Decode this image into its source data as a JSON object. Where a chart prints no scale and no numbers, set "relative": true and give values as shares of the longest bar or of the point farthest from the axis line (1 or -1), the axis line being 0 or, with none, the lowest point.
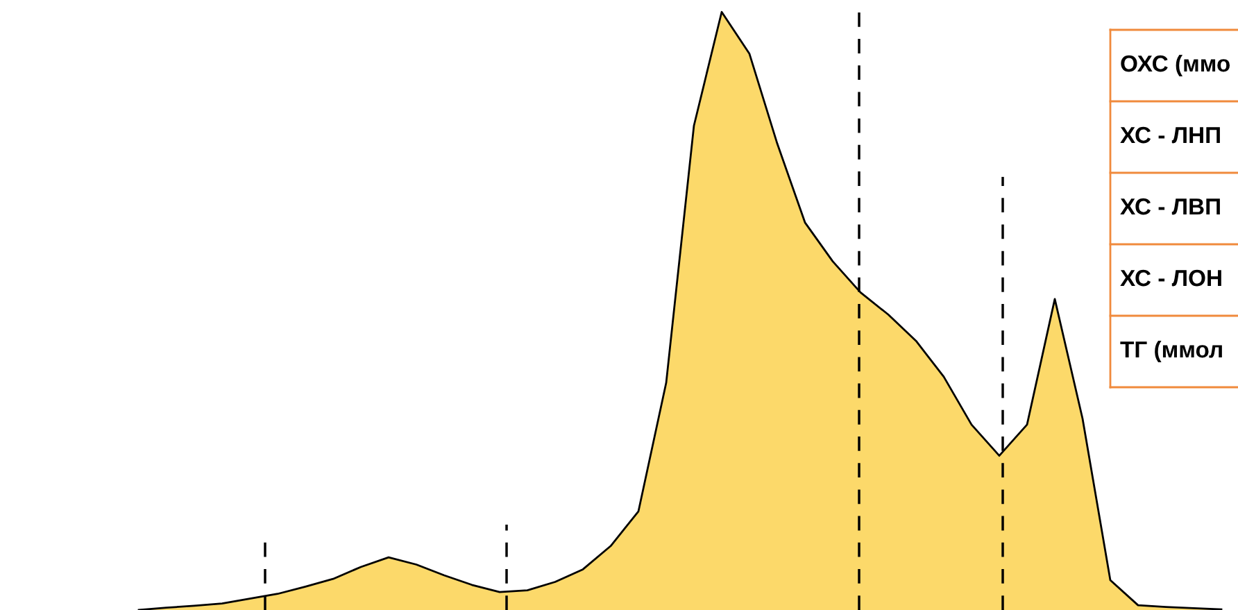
{
  "chart_data": {
    "type": "area",
    "relative": true,
    "categories": [
      null,
      null,
      null,
      null,
      null,
      null,
      null,
      null,
      null,
      null,
      null,
      null,
      null,
      null,
      null,
      null,
      null,
      null,
      null,
      null,
      null,
      null,
      null,
      null,
      null,
      null,
      null,
      null,
      null,
      null,
      null,
      null,
      null,
      null,
      null,
      null,
      null,
      null,
      null,
      null
    ],
    "series": [
      {
        "color": "#fcd96a",
        "values": [
          0,
          0.004,
          0.007,
          0.011,
          0.019,
          0.027,
          0.039,
          0.052,
          0.072,
          0.088,
          0.076,
          0.058,
          0.042,
          0.03,
          0.033,
          0.047,
          0.068,
          0.107,
          0.165,
          0.38,
          0.81,
          1.0,
          0.93,
          0.78,
          0.648,
          0.583,
          0.531,
          0.494,
          0.45,
          0.39,
          0.31,
          0.258,
          0.31,
          0.52,
          0.32,
          0.05,
          0.008,
          0.005,
          0.003,
          0.001
        ]
      }
    ],
    "annotations": [
      "ОХС (ммо",
      "ХС - ЛНП",
      "ХС - ЛВП",
      "ХС - ЛОН",
      "ТГ (ммол"
    ],
    "grid": false,
    "legend": false
  }
}
